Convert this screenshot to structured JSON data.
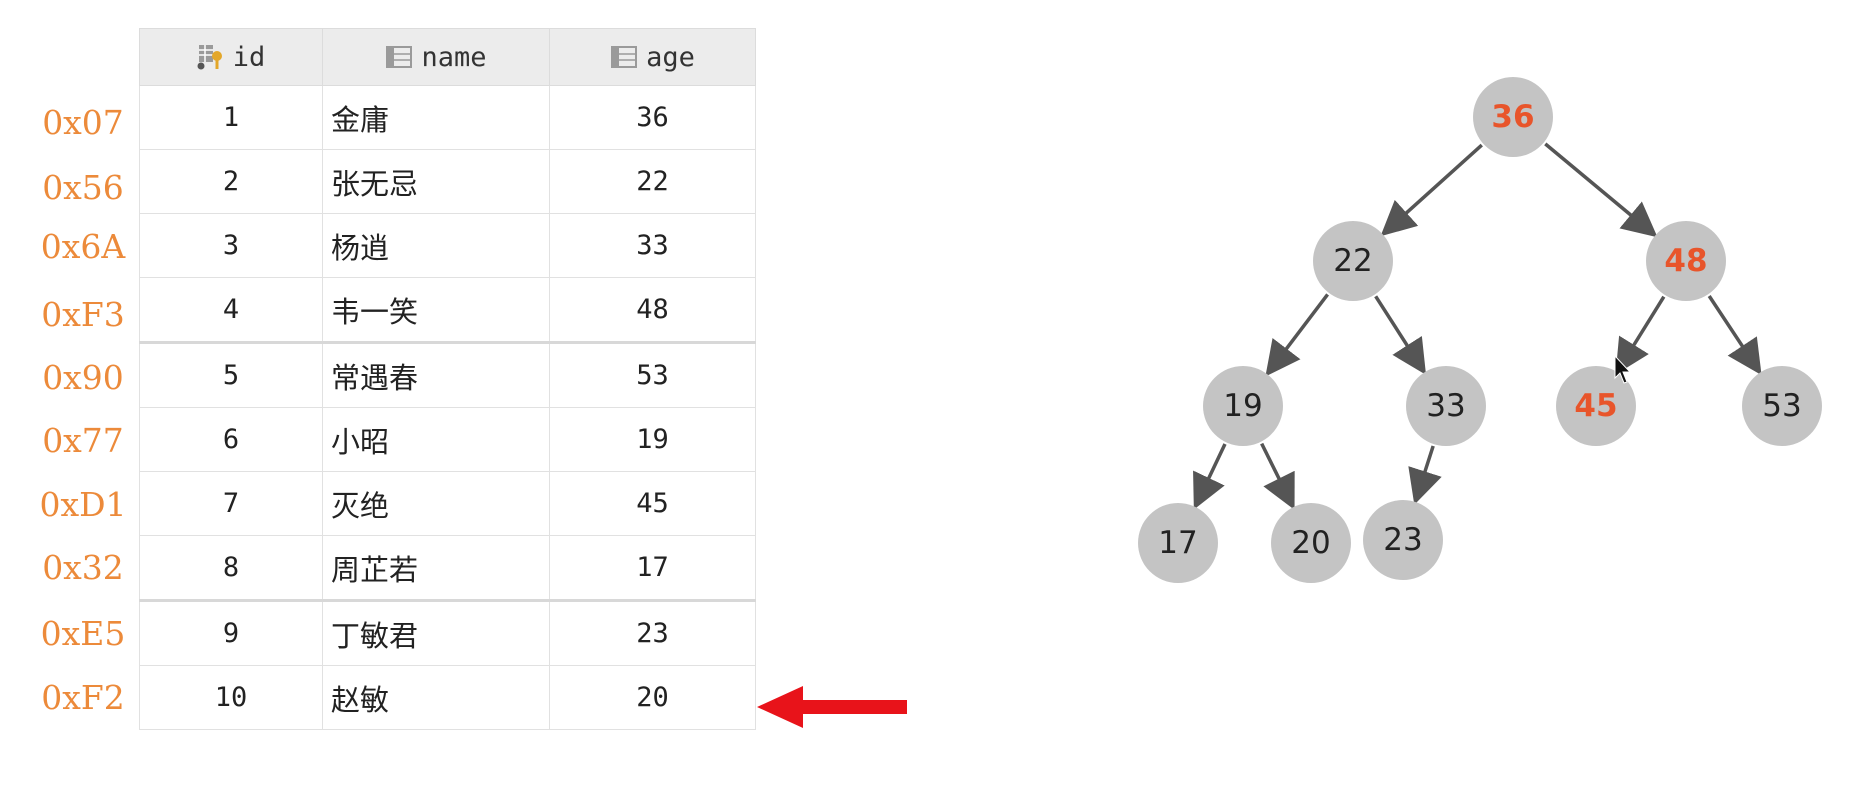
{
  "table": {
    "columns": [
      {
        "label": "id",
        "icon": "primary-key-column-icon"
      },
      {
        "label": "name",
        "icon": "column-icon"
      },
      {
        "label": "age",
        "icon": "column-icon"
      }
    ],
    "rows": [
      {
        "addr": "0x07",
        "id": "1",
        "name": "金庸",
        "age": "36"
      },
      {
        "addr": "0x56",
        "id": "2",
        "name": "张无忌",
        "age": "22"
      },
      {
        "addr": "0x6A",
        "id": "3",
        "name": "杨逍",
        "age": "33"
      },
      {
        "addr": "0xF3",
        "id": "4",
        "name": "韦一笑",
        "age": "48"
      },
      {
        "addr": "0x90",
        "id": "5",
        "name": "常遇春",
        "age": "53"
      },
      {
        "addr": "0x77",
        "id": "6",
        "name": "小昭",
        "age": "19"
      },
      {
        "addr": "0xD1",
        "id": "7",
        "name": "灭绝",
        "age": "45"
      },
      {
        "addr": "0x32",
        "id": "8",
        "name": "周芷若",
        "age": "17"
      },
      {
        "addr": "0xE5",
        "id": "9",
        "name": "丁敏君",
        "age": "23"
      },
      {
        "addr": "0xF2",
        "id": "10",
        "name": "赵敏",
        "age": "20"
      }
    ],
    "pointer_row": 9,
    "pointer_icon": "red-left-arrow-icon"
  },
  "tree": {
    "nodes": [
      {
        "id": "n36",
        "label": "36",
        "highlight": true
      },
      {
        "id": "n22",
        "label": "22",
        "highlight": false
      },
      {
        "id": "n48",
        "label": "48",
        "highlight": true
      },
      {
        "id": "n19",
        "label": "19",
        "highlight": false
      },
      {
        "id": "n33",
        "label": "33",
        "highlight": false
      },
      {
        "id": "n45",
        "label": "45",
        "highlight": true
      },
      {
        "id": "n53",
        "label": "53",
        "highlight": false
      },
      {
        "id": "n17",
        "label": "17",
        "highlight": false
      },
      {
        "id": "n20",
        "label": "20",
        "highlight": false
      },
      {
        "id": "n23",
        "label": "23",
        "highlight": false
      }
    ],
    "edges": [
      [
        "n36",
        "n22"
      ],
      [
        "n36",
        "n48"
      ],
      [
        "n22",
        "n19"
      ],
      [
        "n22",
        "n33"
      ],
      [
        "n48",
        "n45"
      ],
      [
        "n48",
        "n53"
      ],
      [
        "n19",
        "n17"
      ],
      [
        "n19",
        "n20"
      ],
      [
        "n33",
        "n23"
      ]
    ]
  },
  "colors": {
    "address": "#ec8a3a",
    "node_fill": "#c4c4c4",
    "node_text": "#222222",
    "node_highlight_text": "#e8552b",
    "edge": "#555555",
    "pointer_arrow": "#e8131a"
  }
}
